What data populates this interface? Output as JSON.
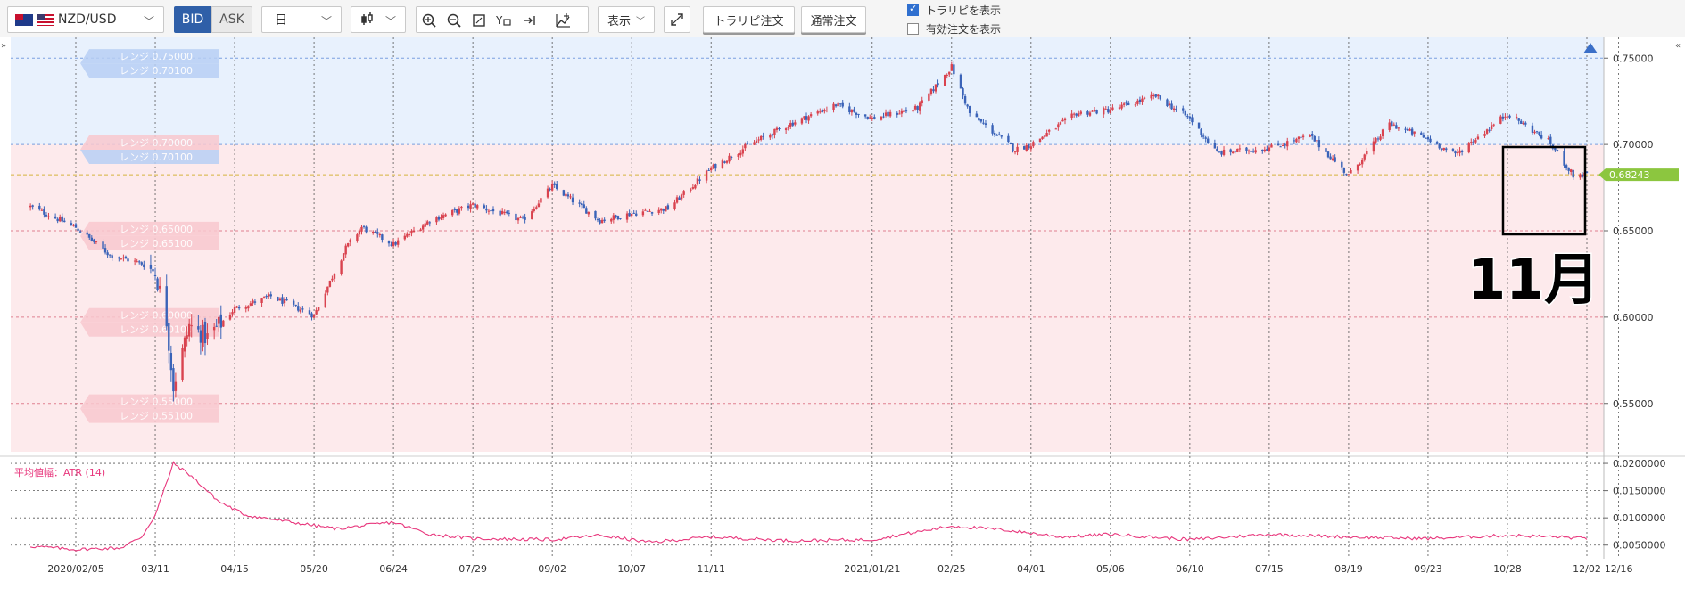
{
  "toolbar": {
    "pair": "NZD/USD",
    "bid_label": "BID",
    "ask_label": "ASK",
    "period": "日",
    "display_label": "表示",
    "trail_order_label": "トラリピ注文",
    "normal_order_label": "通常注文",
    "show_trail_label": "トラリピを表示",
    "show_trail_checked": true,
    "show_orders_label": "有効注文を表示",
    "show_orders_checked": false,
    "icons": [
      "candlestick-icon",
      "zoom-in-icon",
      "zoom-out-icon",
      "fit-icon",
      "y-axis-icon",
      "scroll-end-icon",
      "add-indicator-icon",
      "fullscreen-icon"
    ]
  },
  "annotation_text": "11月",
  "colors": {
    "bull": "#d9434f",
    "bear": "#3a63b8",
    "range_upper": "#e8f1fd",
    "range_lower": "#fdeaec",
    "atr_line": "#e8367c",
    "current_price": "#8cc63f"
  },
  "chart_data": [
    {
      "type": "candlestick",
      "symbol": "NZD/USD",
      "period": "daily",
      "x_tick_labels": [
        "2020/02/05",
        "03/11",
        "04/15",
        "05/20",
        "06/24",
        "07/29",
        "09/02",
        "10/07",
        "11/11",
        "12/16",
        "2021/01/21",
        "02/25",
        "04/01",
        "05/06",
        "06/10",
        "07/15",
        "08/19",
        "09/23",
        "10/28",
        "12/02"
      ],
      "y_tick_labels": [
        "0.75000",
        "0.70000",
        "0.65000",
        "0.60000",
        "0.55000"
      ],
      "ylim": [
        0.522,
        0.762
      ],
      "current_price": "0.68243",
      "trend": [
        {
          "date": "2020/01/16",
          "close": 0.664
        },
        {
          "date": "2020/02/05",
          "close": 0.652
        },
        {
          "date": "2020/02/20",
          "close": 0.636
        },
        {
          "date": "2020/03/05",
          "close": 0.631
        },
        {
          "date": "2020/03/11",
          "close": 0.626
        },
        {
          "date": "2020/03/16",
          "close": 0.598
        },
        {
          "date": "2020/03/19",
          "close": 0.56
        },
        {
          "date": "2020/03/26",
          "close": 0.595
        },
        {
          "date": "2020/04/03",
          "close": 0.588
        },
        {
          "date": "2020/04/15",
          "close": 0.605
        },
        {
          "date": "2020/05/01",
          "close": 0.612
        },
        {
          "date": "2020/05/20",
          "close": 0.601
        },
        {
          "date": "2020/06/03",
          "close": 0.64
        },
        {
          "date": "2020/06/10",
          "close": 0.652
        },
        {
          "date": "2020/06/24",
          "close": 0.642
        },
        {
          "date": "2020/07/10",
          "close": 0.656
        },
        {
          "date": "2020/07/29",
          "close": 0.665
        },
        {
          "date": "2020/08/20",
          "close": 0.656
        },
        {
          "date": "2020/09/02",
          "close": 0.676
        },
        {
          "date": "2020/09/23",
          "close": 0.656
        },
        {
          "date": "2020/10/07",
          "close": 0.66
        },
        {
          "date": "2020/10/23",
          "close": 0.663
        },
        {
          "date": "2020/11/11",
          "close": 0.686
        },
        {
          "date": "2020/11/28",
          "close": 0.7
        },
        {
          "date": "2020/12/16",
          "close": 0.712
        },
        {
          "date": "2021/01/05",
          "close": 0.723
        },
        {
          "date": "2021/01/21",
          "close": 0.715
        },
        {
          "date": "2021/02/10",
          "close": 0.721
        },
        {
          "date": "2021/02/25",
          "close": 0.745
        },
        {
          "date": "2021/03/05",
          "close": 0.718
        },
        {
          "date": "2021/03/25",
          "close": 0.697
        },
        {
          "date": "2021/04/01",
          "close": 0.7
        },
        {
          "date": "2021/04/21",
          "close": 0.718
        },
        {
          "date": "2021/05/06",
          "close": 0.72
        },
        {
          "date": "2021/05/26",
          "close": 0.728
        },
        {
          "date": "2021/06/10",
          "close": 0.715
        },
        {
          "date": "2021/06/22",
          "close": 0.695
        },
        {
          "date": "2021/07/15",
          "close": 0.698
        },
        {
          "date": "2021/08/02",
          "close": 0.705
        },
        {
          "date": "2021/08/19",
          "close": 0.682
        },
        {
          "date": "2021/09/06",
          "close": 0.712
        },
        {
          "date": "2021/09/23",
          "close": 0.703
        },
        {
          "date": "2021/10/05",
          "close": 0.694
        },
        {
          "date": "2021/10/28",
          "close": 0.718
        },
        {
          "date": "2021/11/15",
          "close": 0.702
        },
        {
          "date": "2021/11/26",
          "close": 0.682
        },
        {
          "date": "2021/12/02",
          "close": 0.6824
        }
      ],
      "range_orders": [
        {
          "label_a": "レンジ 0.75000",
          "label_b": "レンジ 0.70100",
          "y": 0.747,
          "side": "buy"
        },
        {
          "label_a": "レンジ 0.70000",
          "label_b": "レンジ 0.70100",
          "y": 0.697,
          "side": "mixed"
        },
        {
          "label_a": "レンジ 0.65000",
          "label_b": "レンジ 0.65100",
          "y": 0.647,
          "side": "sell"
        },
        {
          "label_a": "レンジ 0.60000",
          "label_b": "レンジ 0.60100",
          "y": 0.597,
          "side": "sell"
        },
        {
          "label_a": "レンジ 0.55000",
          "label_b": "レンジ 0.55100",
          "y": 0.547,
          "side": "sell"
        }
      ],
      "range_lines": [
        0.75,
        0.7,
        0.65,
        0.6,
        0.55
      ]
    },
    {
      "type": "line",
      "title": "平均値幅：ATR (14)",
      "y_tick_labels": [
        "0.0200000",
        "0.0150000",
        "0.0100000",
        "0.0050000"
      ],
      "ylim": [
        0.0025,
        0.0205
      ],
      "trend": [
        {
          "date": "2020/01/16",
          "value": 0.0048
        },
        {
          "date": "2020/02/05",
          "value": 0.0042
        },
        {
          "date": "2020/02/25",
          "value": 0.0045
        },
        {
          "date": "2020/03/05",
          "value": 0.0065
        },
        {
          "date": "2020/03/11",
          "value": 0.0105
        },
        {
          "date": "2020/03/19",
          "value": 0.02
        },
        {
          "date": "2020/03/26",
          "value": 0.018
        },
        {
          "date": "2020/04/08",
          "value": 0.013
        },
        {
          "date": "2020/04/20",
          "value": 0.0105
        },
        {
          "date": "2020/05/10",
          "value": 0.0092
        },
        {
          "date": "2020/05/30",
          "value": 0.008
        },
        {
          "date": "2020/06/24",
          "value": 0.0092
        },
        {
          "date": "2020/07/10",
          "value": 0.007
        },
        {
          "date": "2020/07/29",
          "value": 0.0062
        },
        {
          "date": "2020/09/02",
          "value": 0.006
        },
        {
          "date": "2020/09/23",
          "value": 0.0068
        },
        {
          "date": "2020/10/15",
          "value": 0.0055
        },
        {
          "date": "2020/11/11",
          "value": 0.0065
        },
        {
          "date": "2020/12/16",
          "value": 0.0058
        },
        {
          "date": "2021/01/21",
          "value": 0.006
        },
        {
          "date": "2021/02/25",
          "value": 0.0085
        },
        {
          "date": "2021/03/20",
          "value": 0.0078
        },
        {
          "date": "2021/04/15",
          "value": 0.0065
        },
        {
          "date": "2021/05/06",
          "value": 0.007
        },
        {
          "date": "2021/06/10",
          "value": 0.006
        },
        {
          "date": "2021/07/15",
          "value": 0.007
        },
        {
          "date": "2021/08/19",
          "value": 0.0065
        },
        {
          "date": "2021/09/23",
          "value": 0.0062
        },
        {
          "date": "2021/10/28",
          "value": 0.0068
        },
        {
          "date": "2021/11/20",
          "value": 0.0065
        },
        {
          "date": "2021/12/02",
          "value": 0.0062
        }
      ]
    }
  ]
}
